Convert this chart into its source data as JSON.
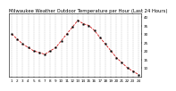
{
  "title": "Milwaukee Weather Outdoor Temperature per Hour (Last 24 Hours)",
  "x_labels": [
    "1",
    "2",
    "3",
    "4",
    "5",
    "6",
    "7",
    "8",
    "9",
    "10",
    "11",
    "12",
    "13",
    "14",
    "15",
    "16",
    "17",
    "18",
    "19",
    "20",
    "21",
    "22",
    "23",
    "24"
  ],
  "hours": [
    1,
    2,
    3,
    4,
    5,
    6,
    7,
    8,
    9,
    10,
    11,
    12,
    13,
    14,
    15,
    16,
    17,
    18,
    19,
    20,
    21,
    22,
    23,
    24
  ],
  "temps": [
    30,
    27,
    24,
    22,
    20,
    19,
    18,
    20,
    22,
    26,
    30,
    34,
    38,
    36,
    35,
    32,
    28,
    24,
    20,
    16,
    13,
    10,
    8,
    6
  ],
  "line_color": "#cc0000",
  "marker_color": "#000000",
  "background_color": "#ffffff",
  "grid_color": "#888888",
  "ylim": [
    5,
    42
  ],
  "yticks": [
    10,
    15,
    20,
    25,
    30,
    35,
    40
  ],
  "title_fontsize": 3.8,
  "tick_fontsize": 3.0,
  "xlim": [
    0.5,
    24.5
  ]
}
